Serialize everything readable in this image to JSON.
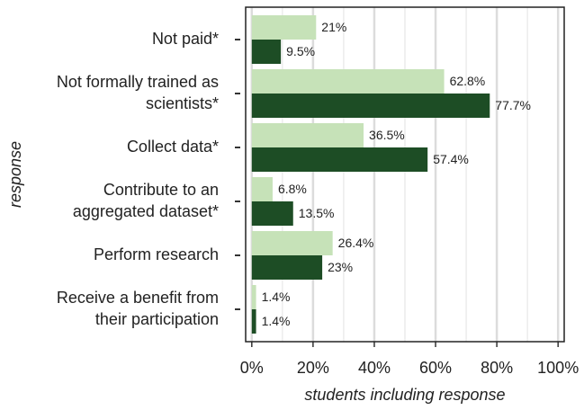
{
  "chart_data": {
    "type": "barh",
    "categories": [
      "Not paid*",
      "Not formally trained as\nscientists*",
      "Collect data*",
      "Contribute to an\naggregated dataset*",
      "Perform research",
      "Receive a benefit from\ntheir participation"
    ],
    "series": [
      {
        "color": "#c6e2b8",
        "values": [
          21,
          62.8,
          36.5,
          6.8,
          26.4,
          1.4
        ],
        "value_labels": [
          "21%",
          "62.8%",
          "36.5%",
          "6.8%",
          "26.4%",
          "1.4%"
        ]
      },
      {
        "color": "#1d4d25",
        "values": [
          9.5,
          77.7,
          57.4,
          13.5,
          23,
          1.4
        ],
        "value_labels": [
          "9.5%",
          "77.7%",
          "57.4%",
          "13.5%",
          "23%",
          "1.4%"
        ]
      }
    ],
    "xlim": [
      -2,
      102
    ],
    "xticks": [
      {
        "value": 0,
        "label": "0%"
      },
      {
        "value": 20,
        "label": "20%"
      },
      {
        "value": 40,
        "label": "40%"
      },
      {
        "value": 60,
        "label": "60%"
      },
      {
        "value": 80,
        "label": "80%"
      },
      {
        "value": 100,
        "label": "100%"
      }
    ],
    "xlabel": "students including response",
    "ylabel": "response",
    "grid": true
  }
}
